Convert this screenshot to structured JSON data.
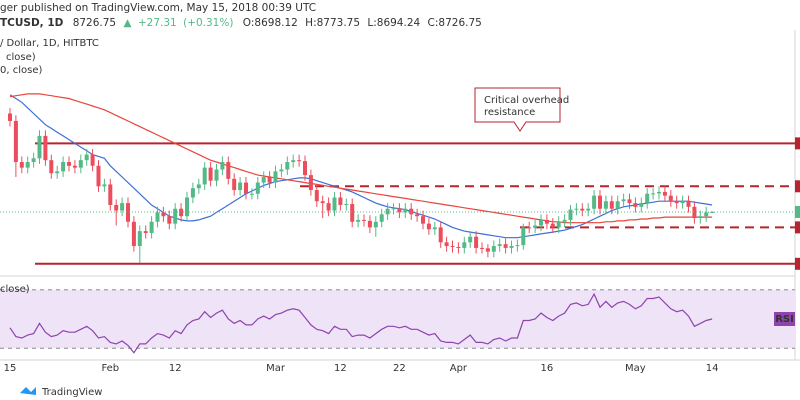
{
  "header": {
    "publisher": "ger published on TradingView.com, May 15, 2018 00:39 UTC",
    "symbol": "TCUSD, 1D",
    "arrow": "▲",
    "change": {
      "value": 27.31,
      "label": "+27.31"
    },
    "change_pct": {
      "value": 0.31,
      "label": "(+0.31%)"
    },
    "ohlc_labels": [
      "O:",
      "H:",
      "L:",
      "C:"
    ]
  },
  "legend": [
    "/ Dollar, 1D, HITBTC",
    "close)",
    "0, close)"
  ],
  "chart_data": [
    {
      "type": "candlestick",
      "categories": [
        "15",
        null,
        null,
        null,
        null,
        null,
        null,
        null,
        null,
        null,
        null,
        null,
        null,
        null,
        null,
        null,
        null,
        "Feb",
        null,
        null,
        null,
        null,
        null,
        null,
        null,
        null,
        null,
        null,
        "12",
        null,
        null,
        null,
        null,
        null,
        null,
        null,
        null,
        null,
        null,
        null,
        null,
        null,
        null,
        null,
        null,
        "Mar",
        null,
        null,
        null,
        null,
        null,
        null,
        null,
        null,
        null,
        null,
        "12",
        null,
        null,
        null,
        null,
        null,
        null,
        null,
        null,
        null,
        "22",
        null,
        null,
        null,
        null,
        null,
        null,
        null,
        null,
        null,
        "Apr",
        null,
        null,
        null,
        null,
        null,
        null,
        null,
        null,
        null,
        null,
        null,
        null,
        null,
        null,
        "16",
        null,
        null,
        null,
        null,
        null,
        null,
        null,
        null,
        null,
        null,
        null,
        null,
        null,
        null,
        "May",
        null,
        null,
        null,
        null,
        null,
        null,
        null,
        null,
        null,
        null,
        null,
        null,
        "14"
      ],
      "open": [
        14000,
        13600,
        11400,
        11100,
        11400,
        11600,
        12800,
        11500,
        10800,
        10900,
        11400,
        11200,
        11100,
        11500,
        11800,
        11200,
        10100,
        10200,
        9100,
        8800,
        9200,
        8200,
        6900,
        7700,
        7600,
        8200,
        8700,
        8500,
        8100,
        8900,
        8500,
        9500,
        10000,
        10200,
        11100,
        10400,
        11000,
        11400,
        10500,
        9900,
        10300,
        9700,
        9700,
        10300,
        10600,
        10300,
        10900,
        11000,
        11400,
        11500,
        11450,
        10700,
        9900,
        9300,
        9200,
        8800,
        9500,
        9100,
        9150,
        8200,
        8300,
        8250,
        7900,
        8200,
        8600,
        8900,
        8920,
        8700,
        8900,
        8600,
        8500,
        8100,
        7800,
        7900,
        7100,
        6900,
        6850,
        6800,
        7100,
        7400,
        6800,
        6780,
        6600,
        6900,
        7000,
        6800,
        6900,
        6950,
        7900,
        7880,
        8000,
        8300,
        8100,
        7900,
        8200,
        8300,
        8850,
        8900,
        8800,
        8900,
        9600,
        8900,
        9300,
        8900,
        9300,
        9400,
        9200,
        9000,
        9200,
        9700,
        9720,
        9800,
        9600,
        9300,
        9200,
        9300,
        9000,
        8400,
        8500,
        8698.12
      ],
      "high": [
        14300,
        13900,
        11700,
        11700,
        11900,
        13100,
        13100,
        11800,
        11200,
        11700,
        11700,
        11500,
        11800,
        12100,
        12100,
        11500,
        10500,
        10500,
        9400,
        9500,
        9500,
        8500,
        8000,
        8000,
        8500,
        9000,
        9000,
        8800,
        9200,
        9200,
        9800,
        10300,
        10500,
        11400,
        11400,
        11300,
        11700,
        11700,
        10800,
        10600,
        10600,
        10000,
        10600,
        10900,
        10900,
        11200,
        11300,
        11700,
        11800,
        11800,
        11750,
        11000,
        10200,
        9600,
        9500,
        9800,
        9800,
        9450,
        9450,
        8600,
        8600,
        8550,
        8500,
        8900,
        9200,
        9200,
        9200,
        9200,
        9200,
        8900,
        8800,
        8400,
        8200,
        8200,
        7400,
        7200,
        7100,
        7400,
        7700,
        7700,
        7100,
        7000,
        7200,
        7300,
        7300,
        7200,
        7250,
        8100,
        8200,
        8300,
        8600,
        8600,
        8400,
        8500,
        8600,
        9100,
        9200,
        9200,
        9200,
        9900,
        9900,
        9600,
        9600,
        9600,
        9700,
        9700,
        9500,
        9500,
        10000,
        10000,
        10100,
        10100,
        9900,
        9600,
        9600,
        9600,
        9300,
        8800,
        9000,
        8773.75
      ],
      "low": [
        13300,
        10600,
        10800,
        10800,
        11100,
        11300,
        11200,
        10500,
        10500,
        10600,
        10900,
        10800,
        10800,
        11200,
        10900,
        9800,
        9800,
        8800,
        8000,
        8500,
        7900,
        6600,
        6000,
        7300,
        7300,
        7900,
        8200,
        7800,
        7800,
        8200,
        8200,
        9200,
        9700,
        9900,
        10100,
        10100,
        10700,
        10200,
        9600,
        9600,
        9400,
        9400,
        9400,
        10000,
        10000,
        10000,
        10600,
        10700,
        11100,
        11150,
        10400,
        9600,
        9000,
        8400,
        8500,
        8500,
        8800,
        8800,
        7900,
        7900,
        7950,
        7600,
        7400,
        7900,
        8300,
        8600,
        8400,
        8400,
        8300,
        8200,
        7800,
        7500,
        7500,
        6800,
        6600,
        6550,
        6500,
        6500,
        6800,
        6500,
        6500,
        6300,
        6300,
        6600,
        6500,
        6500,
        6600,
        6700,
        7600,
        7600,
        7700,
        7800,
        7600,
        7600,
        7900,
        8000,
        8550,
        8500,
        8500,
        8600,
        8600,
        8600,
        8600,
        8600,
        9000,
        8900,
        8700,
        8700,
        8900,
        9400,
        9400,
        9300,
        9000,
        8900,
        8900,
        8700,
        8100,
        8100,
        8200,
        8694.24
      ],
      "close": [
        13600,
        11400,
        11100,
        11400,
        11600,
        12800,
        11500,
        10800,
        10900,
        11400,
        11200,
        11100,
        11500,
        11800,
        11200,
        10100,
        10200,
        9100,
        8800,
        9200,
        8200,
        6900,
        7700,
        7600,
        8200,
        8700,
        8500,
        8100,
        8900,
        8500,
        9500,
        10000,
        10200,
        11100,
        10400,
        11000,
        11400,
        10500,
        9900,
        10300,
        9700,
        9700,
        10300,
        10600,
        10300,
        10900,
        11000,
        11400,
        11500,
        11450,
        10700,
        9900,
        9300,
        9200,
        8800,
        9500,
        9100,
        9150,
        8200,
        8300,
        8250,
        7900,
        8200,
        8600,
        8900,
        8920,
        8700,
        8900,
        8600,
        8500,
        8100,
        7800,
        7900,
        7100,
        6900,
        6850,
        6800,
        7100,
        7400,
        6800,
        6780,
        6600,
        6900,
        7000,
        6800,
        6900,
        6950,
        7900,
        7880,
        8000,
        8300,
        8100,
        7900,
        8200,
        8300,
        8850,
        8900,
        8800,
        8900,
        9600,
        8900,
        9300,
        8900,
        9300,
        9400,
        9200,
        9000,
        9200,
        9700,
        9720,
        9800,
        9600,
        9300,
        9200,
        9300,
        9000,
        8400,
        8500,
        8700,
        8726.75
      ],
      "up_color": "#53b987",
      "down_color": "#eb4d5c",
      "ylim": [
        5350,
        17400
      ],
      "series": [
        {
          "color": "#3d6fd6",
          "values": [
            15000,
            14800,
            14600,
            14300,
            14000,
            13700,
            13400,
            13200,
            13000,
            12800,
            12600,
            12400,
            12200,
            12000,
            11800,
            11700,
            11600,
            11200,
            10900,
            10600,
            10300,
            10000,
            9700,
            9400,
            9100,
            8900,
            8700,
            8500,
            8400,
            8300,
            8250,
            8250,
            8300,
            8400,
            8500,
            8700,
            8900,
            9100,
            9300,
            9500,
            9700,
            9850,
            10000,
            10150,
            10250,
            10350,
            10400,
            10450,
            10500,
            10550,
            10550,
            10500,
            10400,
            10300,
            10200,
            10100,
            10000,
            9900,
            9800,
            9650,
            9500,
            9350,
            9200,
            9100,
            9000,
            8950,
            8900,
            8850,
            8750,
            8650,
            8550,
            8450,
            8350,
            8200,
            8050,
            7900,
            7800,
            7700,
            7650,
            7600,
            7550,
            7500,
            7450,
            7400,
            7350,
            7350,
            7350,
            7400,
            7450,
            7500,
            7550,
            7600,
            7650,
            7700,
            7750,
            7850,
            7950,
            8050,
            8200,
            8350,
            8500,
            8650,
            8800,
            8900,
            9000,
            9050,
            9100,
            9150,
            9200,
            9250,
            9300,
            9300,
            9300,
            9300,
            9300,
            9300,
            9250,
            9200,
            9150,
            9100
          ]
        },
        {
          "color": "#e8453c",
          "values": [
            14900,
            14950,
            15000,
            15050,
            15050,
            15050,
            15000,
            14950,
            14900,
            14850,
            14800,
            14700,
            14600,
            14500,
            14400,
            14300,
            14200,
            14050,
            13900,
            13750,
            13600,
            13450,
            13300,
            13150,
            13000,
            12850,
            12700,
            12550,
            12400,
            12250,
            12100,
            11950,
            11800,
            11650,
            11500,
            11400,
            11300,
            11200,
            11100,
            11000,
            10900,
            10800,
            10700,
            10650,
            10600,
            10550,
            10500,
            10450,
            10400,
            10350,
            10300,
            10250,
            10200,
            10150,
            10100,
            10050,
            10000,
            9950,
            9900,
            9850,
            9800,
            9750,
            9700,
            9650,
            9600,
            9550,
            9500,
            9450,
            9400,
            9350,
            9300,
            9250,
            9200,
            9150,
            9100,
            9050,
            9000,
            8950,
            8900,
            8850,
            8800,
            8750,
            8700,
            8650,
            8600,
            8550,
            8500,
            8450,
            8400,
            8350,
            8300,
            8250,
            8200,
            8200,
            8150,
            8150,
            8150,
            8150,
            8150,
            8150,
            8150,
            8200,
            8200,
            8250,
            8250,
            8300,
            8300,
            8350,
            8350,
            8400,
            8400,
            8450,
            8450,
            8450,
            8450,
            8450,
            8450,
            8450,
            8450,
            8450
          ]
        }
      ],
      "levels": {
        "values": [
          12400,
          10100,
          7900,
          5950
        ],
        "styles": [
          "solid",
          "dashed",
          "dashed",
          "solid"
        ],
        "color": "#b5242f"
      },
      "annotation": [
        "Critical overhead",
        "resistance"
      ]
    },
    {
      "type": "line",
      "legend": "close)",
      "label": "RSI",
      "values": [
        44,
        38,
        37,
        39,
        40,
        47,
        41,
        38,
        39,
        42,
        41,
        41,
        43,
        45,
        42,
        37,
        38,
        34,
        33,
        35,
        32,
        27,
        33,
        33,
        37,
        40,
        39,
        37,
        42,
        40,
        46,
        49,
        50,
        55,
        51,
        54,
        56,
        50,
        47,
        49,
        46,
        46,
        50,
        52,
        50,
        53,
        54,
        56,
        57,
        56,
        51,
        46,
        43,
        42,
        40,
        45,
        43,
        43,
        38,
        39,
        39,
        37,
        40,
        43,
        45,
        45,
        44,
        45,
        43,
        43,
        41,
        39,
        40,
        35,
        34,
        34,
        33,
        36,
        39,
        34,
        34,
        33,
        36,
        37,
        35,
        37,
        37,
        49,
        49,
        50,
        54,
        51,
        49,
        52,
        54,
        60,
        61,
        59,
        60,
        67,
        58,
        62,
        58,
        61,
        62,
        60,
        57,
        59,
        64,
        64,
        65,
        61,
        57,
        55,
        56,
        52,
        45,
        47,
        49,
        50
      ],
      "ylim": [
        22,
        78
      ],
      "bands": [
        30,
        70
      ],
      "color": "#8e44ad",
      "band_color": "#efe3f8"
    }
  ],
  "footer": {
    "brand": "TradingView"
  }
}
